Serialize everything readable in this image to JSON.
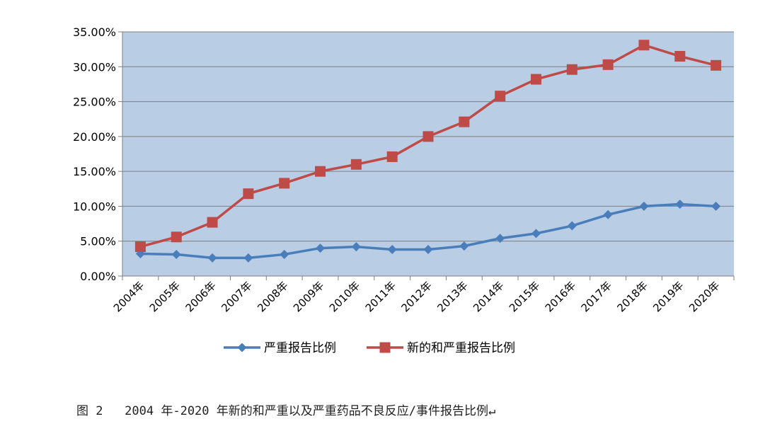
{
  "chart_data": {
    "type": "line",
    "categories": [
      "2004年",
      "2005年",
      "2006年",
      "2007年",
      "2008年",
      "2009年",
      "2010年",
      "2011年",
      "2012年",
      "2013年",
      "2014年",
      "2015年",
      "2016年",
      "2017年",
      "2018年",
      "2019年",
      "2020年"
    ],
    "series": [
      {
        "name": "严重报告比例",
        "color": "#4a7ebb",
        "marker": "diamond",
        "values": [
          3.2,
          3.1,
          2.6,
          2.6,
          3.1,
          4.0,
          4.2,
          3.8,
          3.8,
          4.3,
          5.4,
          6.1,
          7.2,
          8.8,
          10.0,
          10.3,
          10.0
        ]
      },
      {
        "name": "新的和严重报告比例",
        "color": "#be4b48",
        "marker": "square",
        "values": [
          4.2,
          5.6,
          7.7,
          11.8,
          13.3,
          15.0,
          16.0,
          17.1,
          20.0,
          22.1,
          25.8,
          28.2,
          29.6,
          30.3,
          33.1,
          31.5,
          30.2
        ]
      }
    ],
    "ylim": [
      0,
      35
    ],
    "yticks": [
      "0.00%",
      "5.00%",
      "10.00%",
      "15.00%",
      "20.00%",
      "25.00%",
      "30.00%",
      "35.00%"
    ],
    "grid": true,
    "legend_position": "bottom",
    "plot_background": "#b9cde5"
  },
  "caption": "图 2   2004 年-2020 年新的和严重以及严重药品不良反应/事件报告比例↵"
}
